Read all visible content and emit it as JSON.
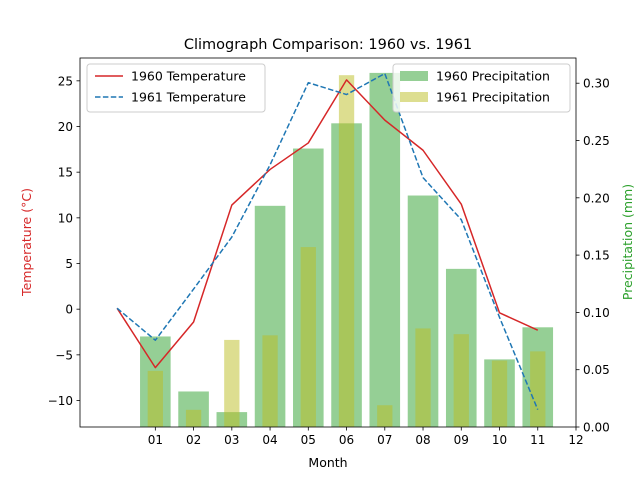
{
  "chart_data": {
    "type": "line+bar",
    "title": "Climograph Comparison: 1960 vs. 1961",
    "xlabel": "Month",
    "ylabel_left": "Temperature (°C)",
    "ylabel_right": "Precipitation (mm)",
    "x_ticks": [
      "01",
      "02",
      "03",
      "04",
      "05",
      "06",
      "07",
      "08",
      "09",
      "10",
      "11",
      "12"
    ],
    "xlim": [
      -0.97,
      12.0
    ],
    "ylim_left": [
      -12.9,
      27.5
    ],
    "ylim_right": [
      0.0,
      0.322
    ],
    "y_ticks_left": [
      -10,
      -5,
      0,
      5,
      10,
      15,
      20,
      25
    ],
    "y_ticks_right": [
      0.0,
      0.05,
      0.1,
      0.15,
      0.2,
      0.25,
      0.3
    ],
    "y_tick_labels_right": [
      "0.00",
      "0.05",
      "0.10",
      "0.15",
      "0.20",
      "0.25",
      "0.30"
    ],
    "colors": {
      "temp_1960": "#d62728",
      "temp_1961": "#1f77b4",
      "precip_1960": "#2ca02c",
      "precip_1961": "#bcbd22",
      "left_axis_label": "#d62728",
      "right_axis_label": "#2ca02c"
    },
    "line_series": [
      {
        "name": "1960 Temperature",
        "style": "solid",
        "x": [
          0,
          1,
          2,
          3,
          4,
          5,
          6,
          7,
          8,
          9,
          10,
          11
        ],
        "values": [
          0.1,
          -6.4,
          -1.4,
          11.4,
          15.3,
          18.2,
          25.1,
          20.7,
          17.4,
          11.5,
          -0.4,
          -2.3
        ]
      },
      {
        "name": "1961 Temperature",
        "style": "dashed",
        "x": [
          0,
          1,
          2,
          3,
          4,
          5,
          6,
          7,
          8,
          9,
          10,
          11
        ],
        "values": [
          0.1,
          -3.4,
          2.2,
          7.9,
          15.8,
          24.8,
          23.5,
          25.8,
          14.4,
          9.8,
          -0.9,
          -11.0
        ]
      }
    ],
    "bar_series": [
      {
        "name": "1960 Precipitation",
        "x": [
          1,
          2,
          3,
          4,
          5,
          6,
          7,
          8,
          9,
          10,
          11
        ],
        "values": [
          0.079,
          0.031,
          0.013,
          0.193,
          0.243,
          0.265,
          0.309,
          0.202,
          0.138,
          0.059,
          0.087
        ]
      },
      {
        "name": "1961 Precipitation",
        "x": [
          1,
          2,
          3,
          4,
          5,
          6,
          7,
          8,
          9,
          10,
          11
        ],
        "values": [
          0.049,
          0.015,
          0.076,
          0.08,
          0.157,
          0.307,
          0.019,
          0.086,
          0.081,
          0.058,
          0.066
        ]
      }
    ],
    "legend_left": {
      "placement": "upper-left",
      "entries": [
        "1960 Temperature",
        "1961 Temperature"
      ]
    },
    "legend_right": {
      "placement": "upper-right",
      "entries": [
        "1960 Precipitation",
        "1961 Precipitation"
      ]
    },
    "grid": false
  }
}
